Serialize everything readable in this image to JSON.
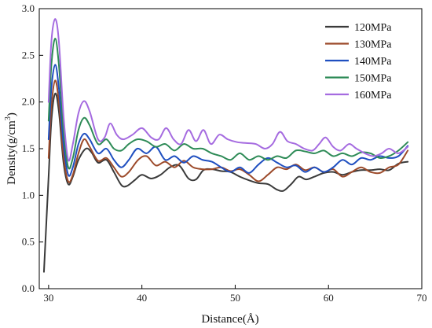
{
  "chart_data": {
    "type": "line",
    "xlabel": "Distance(Å)",
    "ylabel_main": "Density(g/cm",
    "ylabel_sup": "3",
    "ylabel_close": ")",
    "xlim": [
      29,
      70
    ],
    "ylim": [
      0.0,
      3.0
    ],
    "x_ticks": [
      30,
      40,
      50,
      60,
      70
    ],
    "x_tick_labels": [
      "30",
      "40",
      "50",
      "60",
      "70"
    ],
    "y_ticks": [
      0.0,
      0.5,
      1.0,
      1.5,
      2.0,
      2.5,
      3.0
    ],
    "y_tick_labels": [
      "0.0",
      "0.5",
      "1.0",
      "1.5",
      "2.0",
      "2.5",
      "3.0"
    ],
    "legend_position": "top-right",
    "series": [
      {
        "name": "120MPa",
        "color": "#3a3a3a",
        "points": [
          [
            29.5,
            0.18
          ],
          [
            30.0,
            1.2
          ],
          [
            30.3,
            1.8
          ],
          [
            30.7,
            2.09
          ],
          [
            31.1,
            1.9
          ],
          [
            31.6,
            1.35
          ],
          [
            32.1,
            1.12
          ],
          [
            32.6,
            1.2
          ],
          [
            33.2,
            1.38
          ],
          [
            34.0,
            1.5
          ],
          [
            34.6,
            1.46
          ],
          [
            35.3,
            1.35
          ],
          [
            36.2,
            1.38
          ],
          [
            37.0,
            1.25
          ],
          [
            37.8,
            1.11
          ],
          [
            38.4,
            1.1
          ],
          [
            39.2,
            1.16
          ],
          [
            40.0,
            1.22
          ],
          [
            41.0,
            1.18
          ],
          [
            42.0,
            1.22
          ],
          [
            43.0,
            1.3
          ],
          [
            44.0,
            1.32
          ],
          [
            45.0,
            1.18
          ],
          [
            45.8,
            1.17
          ],
          [
            46.6,
            1.27
          ],
          [
            47.5,
            1.28
          ],
          [
            48.5,
            1.26
          ],
          [
            49.5,
            1.25
          ],
          [
            50.5,
            1.2
          ],
          [
            51.5,
            1.16
          ],
          [
            52.5,
            1.13
          ],
          [
            53.5,
            1.12
          ],
          [
            54.5,
            1.06
          ],
          [
            55.2,
            1.05
          ],
          [
            56.0,
            1.12
          ],
          [
            56.8,
            1.2
          ],
          [
            57.6,
            1.17
          ],
          [
            58.5,
            1.2
          ],
          [
            59.5,
            1.24
          ],
          [
            60.5,
            1.25
          ],
          [
            61.5,
            1.22
          ],
          [
            62.5,
            1.25
          ],
          [
            63.5,
            1.27
          ],
          [
            64.5,
            1.27
          ],
          [
            65.5,
            1.28
          ],
          [
            66.5,
            1.27
          ],
          [
            67.5,
            1.34
          ],
          [
            68.5,
            1.36
          ]
        ]
      },
      {
        "name": "130MPa",
        "color": "#9c4a2a",
        "points": [
          [
            30.0,
            1.4
          ],
          [
            30.3,
            1.95
          ],
          [
            30.7,
            2.23
          ],
          [
            31.1,
            2.0
          ],
          [
            31.6,
            1.42
          ],
          [
            32.1,
            1.15
          ],
          [
            32.6,
            1.22
          ],
          [
            33.2,
            1.45
          ],
          [
            33.8,
            1.6
          ],
          [
            34.4,
            1.52
          ],
          [
            35.3,
            1.37
          ],
          [
            36.2,
            1.4
          ],
          [
            37.0,
            1.3
          ],
          [
            37.8,
            1.2
          ],
          [
            38.6,
            1.25
          ],
          [
            39.6,
            1.38
          ],
          [
            40.5,
            1.42
          ],
          [
            41.5,
            1.32
          ],
          [
            42.5,
            1.36
          ],
          [
            43.5,
            1.3
          ],
          [
            44.5,
            1.37
          ],
          [
            45.5,
            1.3
          ],
          [
            46.5,
            1.28
          ],
          [
            47.5,
            1.28
          ],
          [
            48.5,
            1.3
          ],
          [
            49.5,
            1.26
          ],
          [
            50.5,
            1.28
          ],
          [
            51.5,
            1.22
          ],
          [
            52.5,
            1.15
          ],
          [
            53.5,
            1.22
          ],
          [
            54.5,
            1.3
          ],
          [
            55.5,
            1.28
          ],
          [
            56.5,
            1.33
          ],
          [
            57.5,
            1.27
          ],
          [
            58.5,
            1.3
          ],
          [
            59.5,
            1.25
          ],
          [
            60.5,
            1.28
          ],
          [
            61.5,
            1.2
          ],
          [
            62.5,
            1.25
          ],
          [
            63.5,
            1.3
          ],
          [
            64.5,
            1.25
          ],
          [
            65.5,
            1.24
          ],
          [
            66.5,
            1.3
          ],
          [
            67.5,
            1.33
          ],
          [
            68.5,
            1.48
          ]
        ]
      },
      {
        "name": "140MPa",
        "color": "#1f4fc0",
        "points": [
          [
            30.0,
            1.6
          ],
          [
            30.3,
            2.15
          ],
          [
            30.7,
            2.4
          ],
          [
            31.1,
            2.15
          ],
          [
            31.6,
            1.55
          ],
          [
            32.1,
            1.22
          ],
          [
            32.6,
            1.3
          ],
          [
            33.2,
            1.55
          ],
          [
            33.8,
            1.66
          ],
          [
            34.4,
            1.6
          ],
          [
            35.3,
            1.45
          ],
          [
            36.2,
            1.5
          ],
          [
            37.0,
            1.38
          ],
          [
            37.8,
            1.3
          ],
          [
            38.6,
            1.38
          ],
          [
            39.5,
            1.5
          ],
          [
            40.5,
            1.45
          ],
          [
            41.5,
            1.52
          ],
          [
            42.5,
            1.38
          ],
          [
            43.5,
            1.42
          ],
          [
            44.5,
            1.35
          ],
          [
            45.5,
            1.42
          ],
          [
            46.5,
            1.38
          ],
          [
            47.5,
            1.36
          ],
          [
            48.5,
            1.3
          ],
          [
            49.5,
            1.25
          ],
          [
            50.5,
            1.3
          ],
          [
            51.5,
            1.24
          ],
          [
            52.5,
            1.33
          ],
          [
            53.5,
            1.4
          ],
          [
            54.5,
            1.35
          ],
          [
            55.5,
            1.3
          ],
          [
            56.5,
            1.32
          ],
          [
            57.5,
            1.25
          ],
          [
            58.5,
            1.3
          ],
          [
            59.5,
            1.25
          ],
          [
            60.5,
            1.3
          ],
          [
            61.5,
            1.38
          ],
          [
            62.5,
            1.33
          ],
          [
            63.5,
            1.4
          ],
          [
            64.5,
            1.38
          ],
          [
            65.5,
            1.42
          ],
          [
            66.5,
            1.4
          ],
          [
            67.5,
            1.42
          ],
          [
            68.5,
            1.53
          ]
        ]
      },
      {
        "name": "150MPa",
        "color": "#2e8b57",
        "points": [
          [
            30.0,
            1.8
          ],
          [
            30.3,
            2.4
          ],
          [
            30.7,
            2.68
          ],
          [
            31.1,
            2.4
          ],
          [
            31.6,
            1.7
          ],
          [
            32.1,
            1.3
          ],
          [
            32.6,
            1.4
          ],
          [
            33.2,
            1.7
          ],
          [
            33.8,
            1.83
          ],
          [
            34.4,
            1.75
          ],
          [
            35.3,
            1.55
          ],
          [
            36.2,
            1.6
          ],
          [
            37.0,
            1.5
          ],
          [
            37.8,
            1.48
          ],
          [
            38.6,
            1.55
          ],
          [
            39.5,
            1.6
          ],
          [
            40.5,
            1.58
          ],
          [
            41.5,
            1.52
          ],
          [
            42.5,
            1.55
          ],
          [
            43.5,
            1.48
          ],
          [
            44.5,
            1.55
          ],
          [
            45.5,
            1.5
          ],
          [
            46.5,
            1.5
          ],
          [
            47.5,
            1.45
          ],
          [
            48.5,
            1.42
          ],
          [
            49.5,
            1.38
          ],
          [
            50.5,
            1.45
          ],
          [
            51.5,
            1.38
          ],
          [
            52.5,
            1.42
          ],
          [
            53.5,
            1.38
          ],
          [
            54.5,
            1.42
          ],
          [
            55.5,
            1.4
          ],
          [
            56.5,
            1.48
          ],
          [
            57.5,
            1.47
          ],
          [
            58.5,
            1.45
          ],
          [
            59.5,
            1.48
          ],
          [
            60.5,
            1.42
          ],
          [
            61.5,
            1.45
          ],
          [
            62.5,
            1.42
          ],
          [
            63.5,
            1.46
          ],
          [
            64.5,
            1.45
          ],
          [
            65.5,
            1.4
          ],
          [
            66.5,
            1.42
          ],
          [
            67.5,
            1.48
          ],
          [
            68.5,
            1.57
          ]
        ]
      },
      {
        "name": "160MPa",
        "color": "#a56be0",
        "points": [
          [
            30.0,
            2.0
          ],
          [
            30.3,
            2.65
          ],
          [
            30.7,
            2.89
          ],
          [
            31.1,
            2.65
          ],
          [
            31.6,
            1.85
          ],
          [
            32.1,
            1.38
          ],
          [
            32.6,
            1.55
          ],
          [
            33.2,
            1.88
          ],
          [
            33.8,
            2.01
          ],
          [
            34.4,
            1.9
          ],
          [
            35.3,
            1.6
          ],
          [
            36.0,
            1.62
          ],
          [
            36.6,
            1.77
          ],
          [
            37.3,
            1.65
          ],
          [
            38.0,
            1.6
          ],
          [
            39.0,
            1.65
          ],
          [
            40.0,
            1.72
          ],
          [
            41.0,
            1.62
          ],
          [
            41.8,
            1.6
          ],
          [
            42.6,
            1.72
          ],
          [
            43.4,
            1.6
          ],
          [
            44.2,
            1.55
          ],
          [
            45.0,
            1.7
          ],
          [
            45.8,
            1.58
          ],
          [
            46.6,
            1.7
          ],
          [
            47.4,
            1.55
          ],
          [
            48.3,
            1.65
          ],
          [
            49.2,
            1.6
          ],
          [
            50.2,
            1.57
          ],
          [
            51.2,
            1.56
          ],
          [
            52.2,
            1.55
          ],
          [
            53.2,
            1.5
          ],
          [
            54.0,
            1.55
          ],
          [
            54.8,
            1.68
          ],
          [
            55.6,
            1.58
          ],
          [
            56.5,
            1.55
          ],
          [
            57.4,
            1.5
          ],
          [
            58.3,
            1.48
          ],
          [
            59.0,
            1.55
          ],
          [
            59.7,
            1.62
          ],
          [
            60.5,
            1.52
          ],
          [
            61.3,
            1.48
          ],
          [
            62.2,
            1.55
          ],
          [
            63.0,
            1.5
          ],
          [
            63.9,
            1.45
          ],
          [
            64.8,
            1.42
          ],
          [
            65.7,
            1.45
          ],
          [
            66.5,
            1.5
          ],
          [
            67.5,
            1.45
          ],
          [
            68.5,
            1.52
          ]
        ]
      }
    ]
  }
}
